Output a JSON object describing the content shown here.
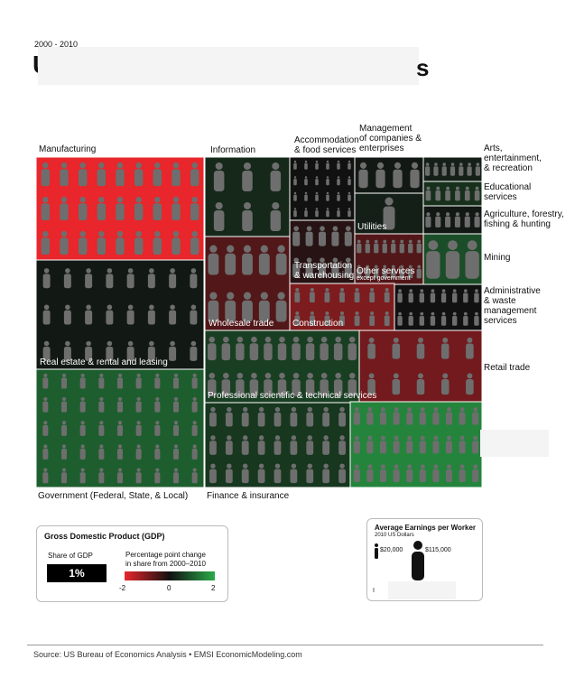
{
  "header": {
    "years": "2000 - 2010",
    "title_start": "U",
    "title_end": "s"
  },
  "chart_data": {
    "type": "treemap",
    "title": "",
    "sectors": [
      {
        "name": "Manufacturing",
        "gdp_change_level": -2.0,
        "earnings_level": 0.7
      },
      {
        "name": "Information",
        "gdp_change_level": 0.3,
        "earnings_level": 0.8
      },
      {
        "name": "Accommodation & food services",
        "gdp_change_level": 0.0,
        "earnings_level": 0.35
      },
      {
        "name": "Management of companies & enterprises",
        "gdp_change_level": 0.1,
        "earnings_level": 0.75
      },
      {
        "name": "Arts, entertainment, & recreation",
        "gdp_change_level": 0.2,
        "earnings_level": 0.35
      },
      {
        "name": "Educational services",
        "gdp_change_level": 0.4,
        "earnings_level": 0.4
      },
      {
        "name": "Agriculture, forestry, fishing & hunting",
        "gdp_change_level": 0.1,
        "earnings_level": 0.35
      },
      {
        "name": "Utilities",
        "gdp_change_level": 0.2,
        "earnings_level": 1.0
      },
      {
        "name": "Mining",
        "gdp_change_level": 0.8,
        "earnings_level": 0.85
      },
      {
        "name": "Transportation & warehousing",
        "gdp_change_level": -0.2,
        "earnings_level": 0.55
      },
      {
        "name": "Other services except government",
        "gdp_change_level": -0.6,
        "earnings_level": 0.35
      },
      {
        "name": "Administrative & waste management services",
        "gdp_change_level": 0.0,
        "earnings_level": 0.4
      },
      {
        "name": "Wholesale trade",
        "gdp_change_level": -0.6,
        "earnings_level": 0.55
      },
      {
        "name": "Construction",
        "gdp_change_level": -1.0,
        "earnings_level": 0.5
      },
      {
        "name": "Real estate & rental and leasing",
        "gdp_change_level": 0.1,
        "earnings_level": 0.3
      },
      {
        "name": "Retail trade",
        "gdp_change_level": -0.9,
        "earnings_level": 0.45
      },
      {
        "name": "Professional scientific & technical services",
        "gdp_change_level": 0.6,
        "earnings_level": 0.6
      },
      {
        "name": "Government (Federal, State, & Local)",
        "gdp_change_level": 1.0,
        "earnings_level": 0.55
      },
      {
        "name": "Finance & insurance",
        "gdp_change_level": 0.5,
        "earnings_level": 0.7
      },
      {
        "name": "",
        "gdp_change_level": 1.5,
        "earnings_level": 0.5
      }
    ],
    "labels": {
      "manufacturing": "Manufacturing",
      "information": "Information",
      "accommodation": "Accommodation\n& food services",
      "management": "Management\nof companies &\nenterprises",
      "arts": "Arts,\nentertainment,\n& recreation",
      "educational": "Educational\nservices",
      "agriculture": "Agriculture, forestry,\nfishing & hunting",
      "utilities": "Utilities",
      "mining": "Mining",
      "transportation": "Transportation\n& warehousing",
      "other_services": "Other services",
      "other_services_sub": "except government",
      "administrative": "Administrative\n& waste\nmanagement\nservices",
      "wholesale": "Wholesale trade",
      "construction": "Construction",
      "real_estate": "Real estate & rental and leasing",
      "retail": "Retail trade",
      "professional": "Professional scientific & technical services",
      "government": "Government (Federal, State, & Local)",
      "finance": "Finance & insurance"
    }
  },
  "gdp_legend": {
    "title": "Gross Domestic Product (GDP)",
    "share_label": "Share of GDP",
    "share_value": "1%",
    "change_label": "Percentage point change\nin share from 2000–2010",
    "tick_min": "-2",
    "tick_mid": "0",
    "tick_max": "2",
    "colors": {
      "negative": "#e8262b",
      "zero": "#111111",
      "positive": "#2aaa4a"
    }
  },
  "earnings_legend": {
    "title": "Average Earnings per Worker",
    "subtitle": "2010 US Dollars",
    "small_value": "$20,000",
    "large_value": "$115,000",
    "bottom_mark": "I"
  },
  "footer": {
    "source": "Source: US Bureau of Economics Analysis • EMSI EconomicModeling.com"
  }
}
